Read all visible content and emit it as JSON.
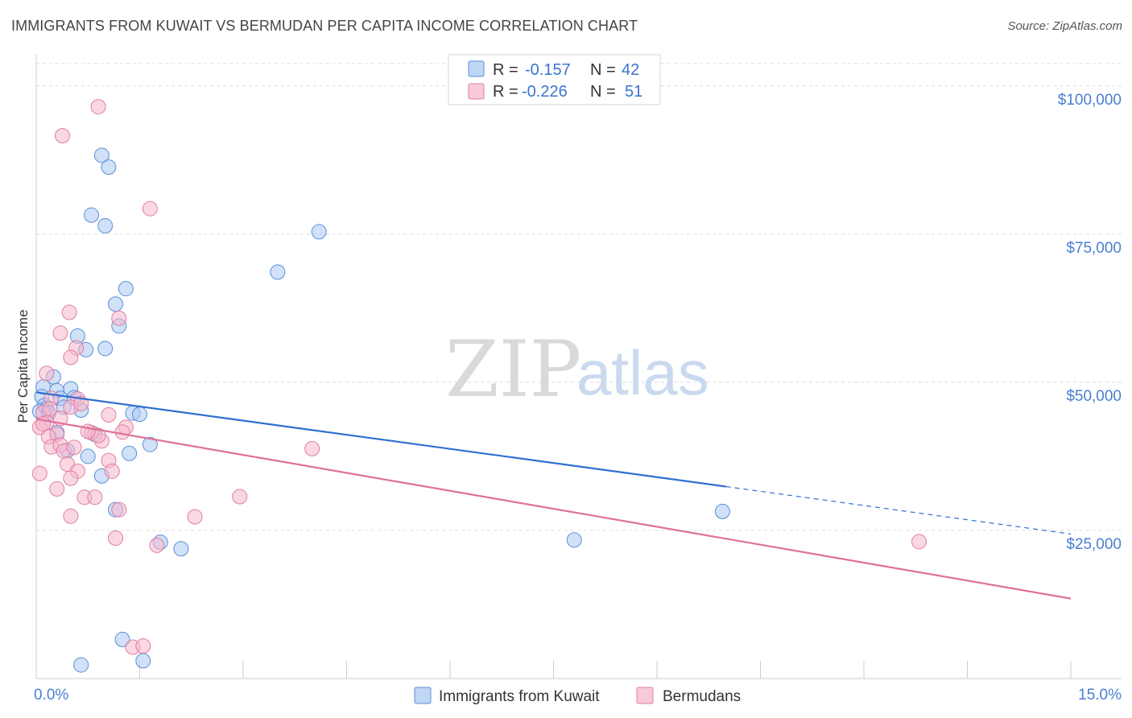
{
  "header": {
    "title": "IMMIGRANTS FROM KUWAIT VS BERMUDAN PER CAPITA INCOME CORRELATION CHART",
    "source": "Source: ZipAtlas.com"
  },
  "watermark": {
    "zip": "ZIP",
    "atlas": "atlas"
  },
  "colors": {
    "blue_fill": "#aac8f2",
    "blue_stroke": "#5b8fd6",
    "blue_line": "#2f6fd0",
    "pink_fill": "#f6b8cc",
    "pink_stroke": "#e07ea0",
    "pink_line": "#e0709a",
    "grid": "#dcdcdc"
  },
  "legend": {
    "rows": [
      {
        "r_label": "R = ",
        "r_value": "-0.157",
        "n_label": "N = ",
        "n_value": "42"
      },
      {
        "r_label": "R = ",
        "r_value": "-0.226",
        "n_label": "N = ",
        "n_value": "51"
      }
    ]
  },
  "chart_data": {
    "type": "scatter",
    "xlabel": "",
    "ylabel": "Per Capita Income",
    "xlim": [
      0,
      15
    ],
    "ylim": [
      0,
      105000
    ],
    "x_tick_labels": [
      {
        "value": 0,
        "label": "0.0%"
      },
      {
        "value": 15,
        "label": "15.0%"
      }
    ],
    "x_minor_ticks": [
      0,
      1.5,
      3,
      4.5,
      6,
      7.5,
      9,
      10.5,
      12,
      13.5,
      15
    ],
    "y_ticks": [
      {
        "value": 25000,
        "label": "$25,000"
      },
      {
        "value": 50000,
        "label": "$50,000"
      },
      {
        "value": 75000,
        "label": "$75,000"
      },
      {
        "value": 100000,
        "label": "$100,000"
      }
    ],
    "grid": true,
    "legend_position": "bottom-center",
    "series": [
      {
        "name": "Immigrants from Kuwait",
        "color": "blue",
        "trend": {
          "x0": 0,
          "y0": 48300,
          "x1": 10.0,
          "y1": 32400,
          "dash_to_x": 15,
          "dash_to_y": 24400
        },
        "points": [
          [
            0.95,
            88300
          ],
          [
            1.05,
            86300
          ],
          [
            0.8,
            78200
          ],
          [
            1.0,
            76400
          ],
          [
            4.1,
            75400
          ],
          [
            3.5,
            68600
          ],
          [
            1.3,
            65800
          ],
          [
            1.15,
            63200
          ],
          [
            1.2,
            59500
          ],
          [
            0.6,
            57800
          ],
          [
            0.72,
            55500
          ],
          [
            1.0,
            55700
          ],
          [
            0.25,
            50900
          ],
          [
            0.1,
            49200
          ],
          [
            0.3,
            48600
          ],
          [
            0.5,
            48900
          ],
          [
            0.55,
            47400
          ],
          [
            0.35,
            47300
          ],
          [
            0.08,
            47600
          ],
          [
            0.12,
            46100
          ],
          [
            0.15,
            45600
          ],
          [
            0.4,
            45800
          ],
          [
            0.05,
            45100
          ],
          [
            0.18,
            44800
          ],
          [
            0.65,
            45300
          ],
          [
            1.4,
            44800
          ],
          [
            1.5,
            44600
          ],
          [
            0.3,
            41500
          ],
          [
            0.85,
            41200
          ],
          [
            1.65,
            39500
          ],
          [
            0.45,
            38500
          ],
          [
            1.35,
            38000
          ],
          [
            0.75,
            37500
          ],
          [
            0.95,
            34200
          ],
          [
            1.15,
            28500
          ],
          [
            1.8,
            23000
          ],
          [
            2.1,
            21900
          ],
          [
            9.95,
            28200
          ],
          [
            7.8,
            23400
          ],
          [
            1.25,
            6600
          ],
          [
            0.65,
            2300
          ],
          [
            1.55,
            3000
          ]
        ]
      },
      {
        "name": "Bermudans",
        "color": "pink",
        "trend": {
          "x0": 0,
          "y0": 43800,
          "x1": 15,
          "y1": 13500
        },
        "points": [
          [
            0.9,
            96500
          ],
          [
            0.38,
            91600
          ],
          [
            1.65,
            79300
          ],
          [
            0.48,
            61800
          ],
          [
            1.2,
            60800
          ],
          [
            0.35,
            58300
          ],
          [
            0.58,
            55800
          ],
          [
            0.5,
            54200
          ],
          [
            0.15,
            51500
          ],
          [
            0.22,
            47300
          ],
          [
            0.6,
            47200
          ],
          [
            0.5,
            45800
          ],
          [
            0.1,
            44900
          ],
          [
            0.15,
            43200
          ],
          [
            0.3,
            41200
          ],
          [
            0.05,
            42400
          ],
          [
            0.18,
            40800
          ],
          [
            0.22,
            39100
          ],
          [
            0.35,
            39400
          ],
          [
            0.8,
            41500
          ],
          [
            0.95,
            40100
          ],
          [
            1.05,
            44500
          ],
          [
            1.3,
            42400
          ],
          [
            1.25,
            41600
          ],
          [
            0.4,
            38400
          ],
          [
            0.45,
            36200
          ],
          [
            0.6,
            35000
          ],
          [
            1.05,
            36800
          ],
          [
            1.1,
            35000
          ],
          [
            0.05,
            34600
          ],
          [
            0.5,
            33800
          ],
          [
            0.3,
            32000
          ],
          [
            0.7,
            30600
          ],
          [
            0.85,
            30600
          ],
          [
            2.95,
            30700
          ],
          [
            4.0,
            38800
          ],
          [
            0.5,
            27400
          ],
          [
            1.2,
            28500
          ],
          [
            2.3,
            27300
          ],
          [
            1.15,
            23700
          ],
          [
            1.75,
            22500
          ],
          [
            12.8,
            23100
          ],
          [
            1.4,
            5300
          ],
          [
            1.55,
            5500
          ],
          [
            0.1,
            43000
          ],
          [
            0.65,
            46400
          ],
          [
            0.2,
            45500
          ],
          [
            0.9,
            41000
          ],
          [
            0.35,
            43900
          ],
          [
            0.55,
            39000
          ],
          [
            0.75,
            41700
          ]
        ]
      }
    ]
  },
  "bottom_legend": {
    "items": [
      {
        "label": "Immigrants from Kuwait"
      },
      {
        "label": "Bermudans"
      }
    ]
  }
}
